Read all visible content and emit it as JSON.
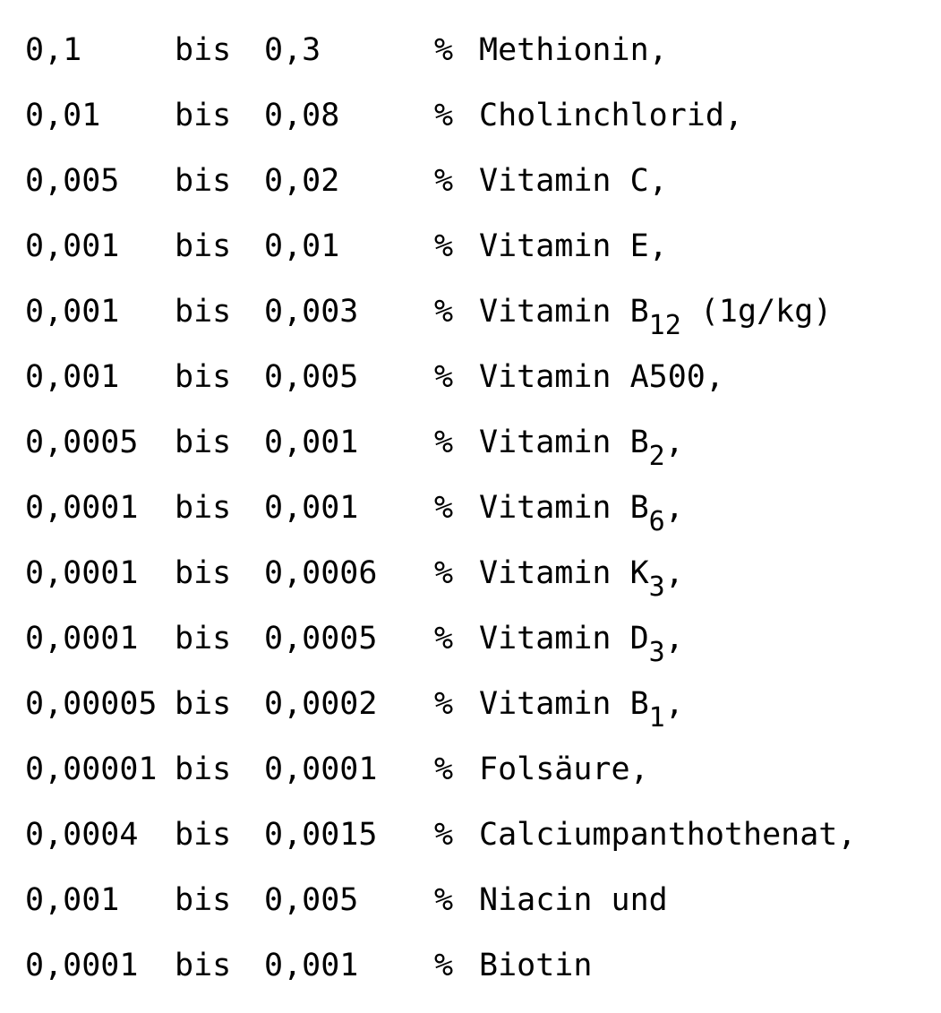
{
  "rows": [
    {
      "from": "0,1",
      "word": "bis",
      "to": "0,3",
      "unit": "%",
      "name": "Methionin",
      "sub": "",
      "suffix": ","
    },
    {
      "from": "0,01",
      "word": "bis",
      "to": "0,08",
      "unit": "%",
      "name": "Cholinchlorid",
      "sub": "",
      "suffix": ","
    },
    {
      "from": "0,005",
      "word": "bis",
      "to": "0,02",
      "unit": "%",
      "name": "Vitamin C",
      "sub": "",
      "suffix": ","
    },
    {
      "from": "0,001",
      "word": "bis",
      "to": "0,01",
      "unit": "%",
      "name": "Vitamin E",
      "sub": "",
      "suffix": ","
    },
    {
      "from": "0,001",
      "word": "bis",
      "to": "0,003",
      "unit": "%",
      "name": "Vitamin B",
      "sub": "12",
      "suffix": " (1g/kg)"
    },
    {
      "from": "0,001",
      "word": "bis",
      "to": "0,005",
      "unit": "%",
      "name": "Vitamin A500",
      "sub": "",
      "suffix": ","
    },
    {
      "from": "0,0005",
      "word": "bis",
      "to": "0,001",
      "unit": "%",
      "name": "Vitamin B",
      "sub": "2",
      "suffix": ","
    },
    {
      "from": "0,0001",
      "word": "bis",
      "to": "0,001",
      "unit": "%",
      "name": "Vitamin B",
      "sub": "6",
      "suffix": ","
    },
    {
      "from": "0,0001",
      "word": "bis",
      "to": "0,0006",
      "unit": "%",
      "name": "Vitamin K",
      "sub": "3",
      "suffix": ","
    },
    {
      "from": "0,0001",
      "word": "bis",
      "to": "0,0005",
      "unit": "%",
      "name": "Vitamin D",
      "sub": "3",
      "suffix": ","
    },
    {
      "from": "0,00005",
      "word": "bis",
      "to": "0,0002",
      "unit": "%",
      "name": "Vitamin B",
      "sub": "1",
      "suffix": ","
    },
    {
      "from": "0,00001",
      "word": "bis",
      "to": "0,0001",
      "unit": "%",
      "name": "Folsäure",
      "sub": "",
      "suffix": ","
    },
    {
      "from": "0,0004",
      "word": "bis",
      "to": "0,0015",
      "unit": "%",
      "name": "Calciumpanthothenat",
      "sub": "",
      "suffix": ","
    },
    {
      "from": "0,001",
      "word": "bis",
      "to": "0,005",
      "unit": "%",
      "name": "Niacin und",
      "sub": "",
      "suffix": ""
    },
    {
      "from": "0,0001",
      "word": "bis",
      "to": "0,001",
      "unit": "%",
      "name": "Biotin",
      "sub": "",
      "suffix": ""
    }
  ]
}
